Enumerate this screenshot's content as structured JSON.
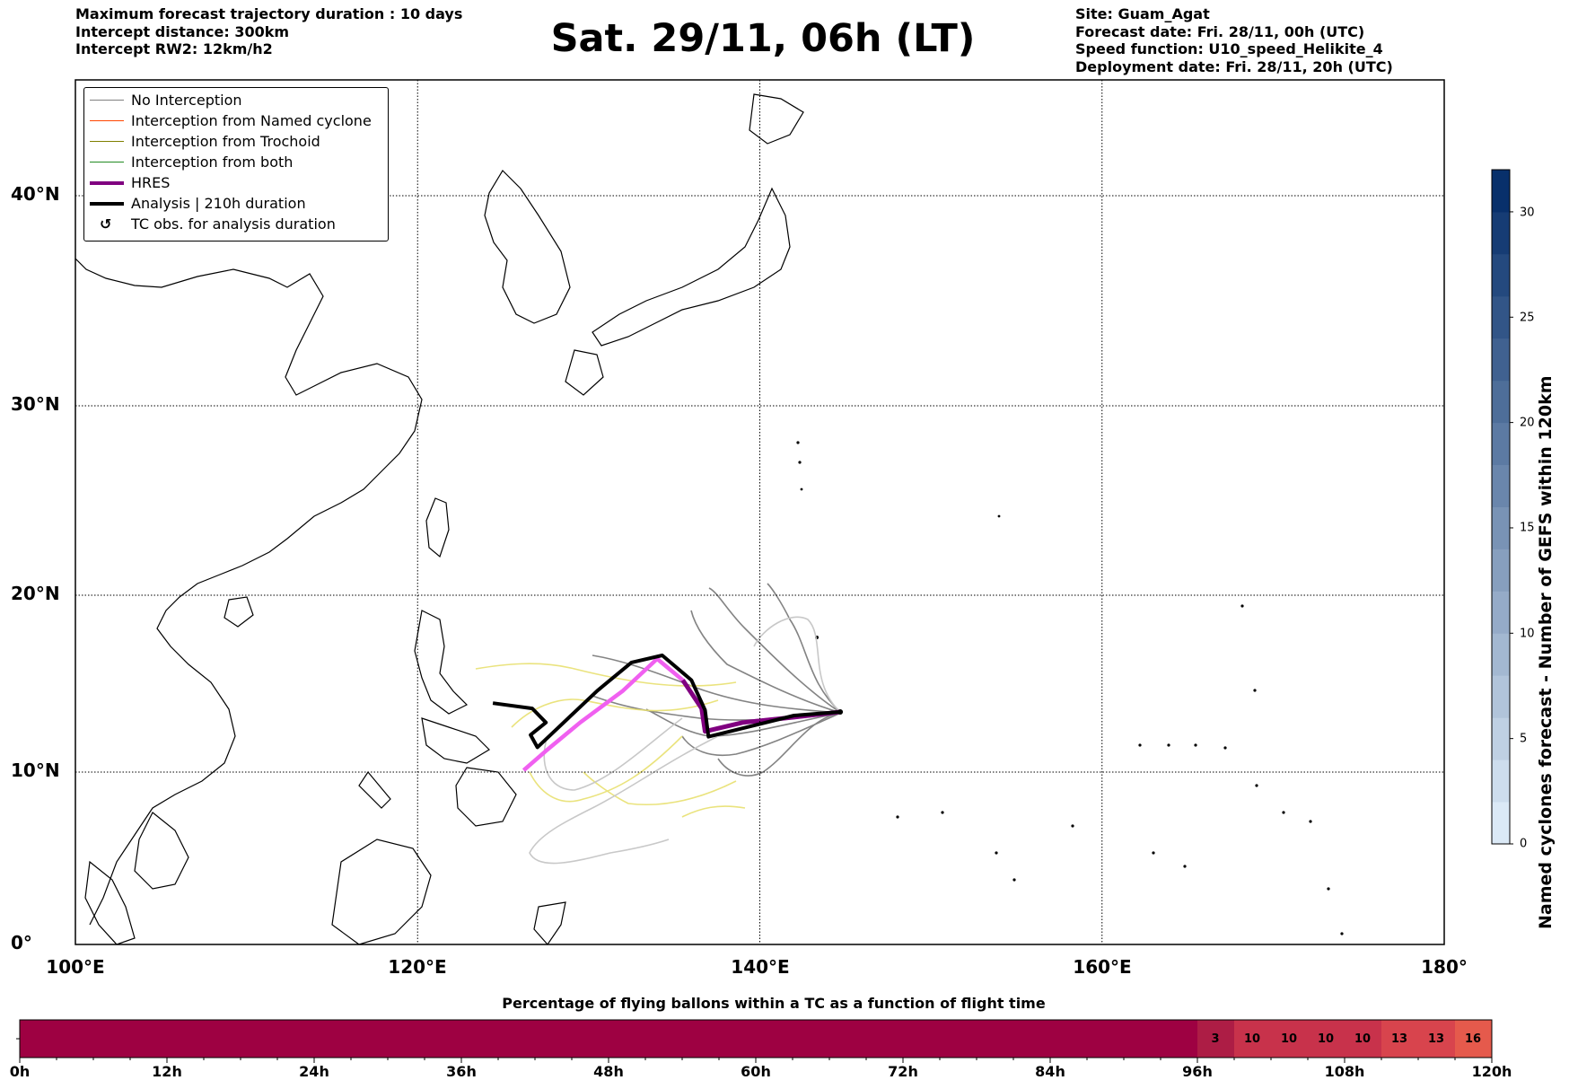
{
  "header_left": [
    "Maximum forecast trajectory duration : 10 days",
    "Intercept distance: 300km",
    "Intercept RW2: 12km/h2"
  ],
  "title": "Sat. 29/11, 06h (LT)",
  "header_right": [
    "Site: Guam_Agat",
    "Forecast date: Fri. 28/11, 00h (UTC)",
    "Speed function: U10_speed_Helikite_4",
    "Deployment date: Fri. 28/11, 20h (UTC)"
  ],
  "legend": [
    {
      "label": "No Interception",
      "color": "#808080",
      "style": "thin"
    },
    {
      "label": "Interception from Named cyclone",
      "color": "#ff4500",
      "style": "thin"
    },
    {
      "label": "Interception from Trochoid",
      "color": "#808000",
      "style": "thin"
    },
    {
      "label": "Interception from both",
      "color": "#228b22",
      "style": "thin"
    },
    {
      "label": "HRES",
      "color": "#800080",
      "style": "thick"
    },
    {
      "label": "Analysis | 210h duration",
      "color": "#000000",
      "style": "thick"
    },
    {
      "label": "TC obs. for analysis duration",
      "color": "#000000",
      "style": "symbol"
    }
  ],
  "map": {
    "lon_range": [
      100,
      180
    ],
    "lat_range": [
      0,
      45
    ],
    "lon_ticks": [
      "100°E",
      "120°E",
      "140°E",
      "160°E",
      "180°"
    ],
    "lat_ticks": [
      "0°",
      "10°N",
      "20°N",
      "30°N",
      "40°N"
    ],
    "lon_tick_values": [
      100,
      120,
      140,
      160,
      180
    ],
    "lat_tick_values": [
      0,
      10,
      20,
      30,
      40
    ],
    "gridlines": true,
    "launch_site": {
      "lon": 144.7,
      "lat": 13.4
    },
    "hres_track": [
      [
        144.7,
        13.4
      ],
      [
        142,
        13.1
      ],
      [
        139,
        12.8
      ],
      [
        136.8,
        12.3
      ],
      [
        136.6,
        13.6
      ],
      [
        135.5,
        15.2
      ],
      [
        134,
        16.4
      ],
      [
        132,
        14.6
      ],
      [
        129.5,
        12.8
      ],
      [
        127.5,
        11.2
      ],
      [
        126.2,
        10.1
      ]
    ],
    "analysis_track": [
      [
        144.7,
        13.4
      ],
      [
        142,
        13.2
      ],
      [
        139.5,
        12.6
      ],
      [
        137,
        12
      ],
      [
        136.8,
        13.5
      ],
      [
        136,
        15.2
      ],
      [
        134.3,
        16.6
      ],
      [
        132.5,
        16.2
      ],
      [
        130.5,
        14.6
      ],
      [
        128.2,
        12.5
      ],
      [
        127,
        11.4
      ],
      [
        126.6,
        12.1
      ],
      [
        127.5,
        12.8
      ],
      [
        126.7,
        13.6
      ],
      [
        124.4,
        13.9
      ]
    ]
  },
  "colorbar": {
    "label": "Named cyclones forecast - Number of GEFS within 120km",
    "ticks": [
      "0",
      "5",
      "10",
      "15",
      "20",
      "25",
      "30"
    ],
    "tick_values": [
      0,
      5,
      10,
      15,
      20,
      25,
      30
    ],
    "range": [
      0,
      32
    ],
    "color_low": "#dbe9f6",
    "color_high": "#08306b"
  },
  "flight_bar": {
    "title": "Percentage of flying ballons within a TC as a function of flight time",
    "tick_labels": [
      "0h",
      "12h",
      "24h",
      "36h",
      "48h",
      "60h",
      "72h",
      "84h",
      "96h",
      "108h",
      "120h"
    ],
    "tick_hours": [
      0,
      12,
      24,
      36,
      48,
      60,
      72,
      84,
      96,
      108,
      120
    ],
    "cells": [
      {
        "start_h": 96,
        "label": "3",
        "color": "#ad1d45"
      },
      {
        "start_h": 99,
        "label": "10",
        "color": "#c8324b"
      },
      {
        "start_h": 102,
        "label": "10",
        "color": "#c8324b"
      },
      {
        "start_h": 105,
        "label": "10",
        "color": "#c8324b"
      },
      {
        "start_h": 108,
        "label": "10",
        "color": "#c8324b"
      },
      {
        "start_h": 111,
        "label": "13",
        "color": "#d8444d"
      },
      {
        "start_h": 114,
        "label": "13",
        "color": "#d8444d"
      },
      {
        "start_h": 117,
        "label": "16",
        "color": "#e55a4c"
      }
    ],
    "base_color": "#9e0142"
  }
}
